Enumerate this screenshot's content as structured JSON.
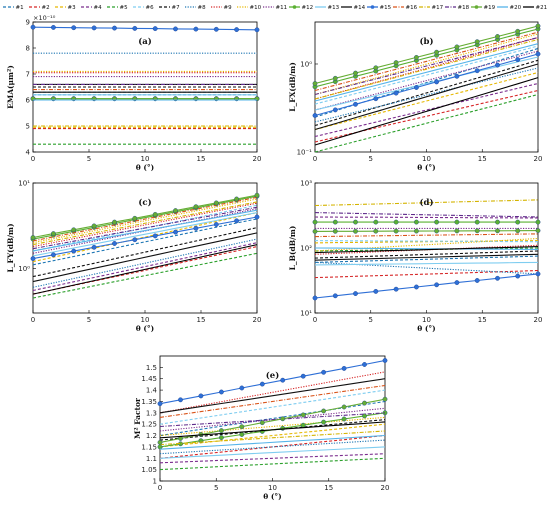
{
  "legend": [
    "#1",
    "#2",
    "#3",
    "#4",
    "#5",
    "#6",
    "#7",
    "#8",
    "#9",
    "#10",
    "#11",
    "#12",
    "#13",
    "#14",
    "#15",
    "#16",
    "#17",
    "#18",
    "#19",
    "#20",
    "#21"
  ],
  "series_colors": [
    "#1f77b4",
    "#d62728",
    "#e6b800",
    "#7b2d8e",
    "#2ca02c",
    "#7fcdf0",
    "#111111",
    "#1f77b4",
    "#d62728",
    "#e6b800",
    "#7b2d8e",
    "#5ab032",
    "#7fcdf0",
    "#111111",
    "#2e6fd6",
    "#d95319",
    "#d4b400",
    "#5e2a8a",
    "#66ad34",
    "#56b4e9",
    "#000000"
  ],
  "chart_data": [
    {
      "panel": "(a)",
      "type": "line",
      "scale": "linear",
      "title": "(a)",
      "xlabel": "θ (°)",
      "ylabel": "EMA(μm²)",
      "multiplier": "×10⁻¹⁰",
      "xlim": [
        0,
        20
      ],
      "ylim": [
        4,
        9
      ],
      "xticks": [
        "0",
        "5",
        "10",
        "15",
        "20"
      ],
      "yticks": [
        "4",
        "5",
        "6",
        "7",
        "8",
        "9"
      ],
      "x": [
        0,
        20
      ],
      "series": [
        {
          "values": [
            6.2,
            6.2
          ]
        },
        {
          "values": [
            4.9,
            4.9
          ]
        },
        {
          "values": [
            4.95,
            4.95
          ]
        },
        {
          "values": [
            6.5,
            6.5
          ]
        },
        {
          "values": [
            4.3,
            4.3
          ]
        },
        {
          "values": [
            6.3,
            6.3
          ]
        },
        {
          "values": [
            6.5,
            6.5
          ]
        },
        {
          "values": [
            7.8,
            7.8
          ]
        },
        {
          "values": [
            7.05,
            7.05
          ]
        },
        {
          "values": [
            7.1,
            7.1
          ]
        },
        {
          "values": [
            6.9,
            6.9
          ]
        },
        {
          "values": [
            6.05,
            6.05
          ]
        },
        {
          "values": [
            6.2,
            6.2
          ]
        },
        {
          "values": [
            6.6,
            6.6
          ]
        },
        {
          "values": [
            8.8,
            8.7
          ]
        },
        {
          "values": [
            6.4,
            6.4
          ]
        },
        {
          "values": [
            5.0,
            5.0
          ]
        },
        {
          "values": [
            6.6,
            6.6
          ]
        },
        {
          "values": [
            6.05,
            6.05
          ]
        },
        {
          "values": [
            6.0,
            6.0
          ]
        },
        {
          "values": [
            6.3,
            6.3
          ]
        }
      ]
    },
    {
      "panel": "(b)",
      "type": "line",
      "scale": "log",
      "title": "(b)",
      "xlabel": "θ (°)",
      "ylabel": "L_FX(dB/m)",
      "xlim": [
        0,
        20
      ],
      "ylim": [
        0.1,
        3.0
      ],
      "xticks": [
        "0",
        "5",
        "10",
        "15",
        "20"
      ],
      "yticks": [
        "10⁻¹",
        "10⁰"
      ],
      "x": [
        0,
        20
      ],
      "series": [
        {
          "values": [
            0.25,
            1.5
          ]
        },
        {
          "values": [
            0.13,
            0.5
          ]
        },
        {
          "values": [
            0.18,
            0.8
          ]
        },
        {
          "values": [
            0.15,
            0.6
          ]
        },
        {
          "values": [
            0.1,
            0.45
          ]
        },
        {
          "values": [
            0.35,
            1.6
          ]
        },
        {
          "values": [
            0.2,
            1.1
          ]
        },
        {
          "values": [
            0.22,
            0.9
          ]
        },
        {
          "values": [
            0.4,
            2.0
          ]
        },
        {
          "values": [
            0.45,
            2.2
          ]
        },
        {
          "values": [
            0.3,
            1.4
          ]
        },
        {
          "values": [
            0.55,
            2.5
          ]
        },
        {
          "values": [
            0.3,
            1.2
          ]
        },
        {
          "values": [
            0.18,
            1.0
          ]
        },
        {
          "values": [
            0.26,
            1.3
          ]
        },
        {
          "values": [
            0.5,
            2.3
          ]
        },
        {
          "values": [
            0.4,
            1.9
          ]
        },
        {
          "values": [
            0.45,
            2.0
          ]
        },
        {
          "values": [
            0.6,
            2.7
          ]
        },
        {
          "values": [
            0.38,
            1.7
          ]
        },
        {
          "values": [
            0.12,
            0.7
          ]
        }
      ]
    },
    {
      "panel": "(c)",
      "type": "line",
      "scale": "log",
      "title": "(c)",
      "xlabel": "θ (°)",
      "ylabel": "L_FY(dB/m)",
      "xlim": [
        0,
        20
      ],
      "ylim": [
        0.3,
        10
      ],
      "xticks": [
        "0",
        "5",
        "10",
        "15",
        "20"
      ],
      "yticks": [
        "10⁰",
        "10¹"
      ],
      "x": [
        0,
        20
      ],
      "series": [
        {
          "values": [
            1.1,
            3.8
          ]
        },
        {
          "values": [
            0.5,
            1.8
          ]
        },
        {
          "values": [
            1.2,
            4.5
          ]
        },
        {
          "values": [
            0.55,
            2.0
          ]
        },
        {
          "values": [
            0.45,
            1.5
          ]
        },
        {
          "values": [
            1.6,
            5.5
          ]
        },
        {
          "values": [
            0.8,
            3.0
          ]
        },
        {
          "values": [
            0.6,
            2.2
          ]
        },
        {
          "values": [
            1.8,
            5.8
          ]
        },
        {
          "values": [
            2.0,
            6.5
          ]
        },
        {
          "values": [
            1.5,
            5.0
          ]
        },
        {
          "values": [
            2.2,
            7.0
          ]
        },
        {
          "values": [
            1.4,
            4.5
          ]
        },
        {
          "values": [
            0.7,
            2.6
          ]
        },
        {
          "values": [
            1.3,
            4.0
          ]
        },
        {
          "values": [
            2.1,
            6.8
          ]
        },
        {
          "values": [
            1.9,
            6.0
          ]
        },
        {
          "values": [
            1.7,
            5.2
          ]
        },
        {
          "values": [
            2.3,
            7.2
          ]
        },
        {
          "values": [
            1.6,
            4.8
          ]
        },
        {
          "values": [
            0.5,
            1.9
          ]
        }
      ]
    },
    {
      "panel": "(d)",
      "type": "line",
      "scale": "log",
      "title": "(d)",
      "xlabel": "θ (°)",
      "ylabel": "L_B(dB/m)",
      "xlim": [
        0,
        20
      ],
      "ylim": [
        10,
        1000
      ],
      "xticks": [
        "0",
        "5",
        "10",
        "15",
        "20"
      ],
      "yticks": [
        "10¹",
        "10²",
        "10³"
      ],
      "x": [
        0,
        20
      ],
      "series": [
        {
          "values": [
            60,
            75
          ]
        },
        {
          "values": [
            35,
            45
          ]
        },
        {
          "values": [
            120,
            130
          ]
        },
        {
          "values": [
            300,
            290
          ]
        },
        {
          "values": [
            90,
            100
          ]
        },
        {
          "values": [
            130,
            125
          ]
        },
        {
          "values": [
            70,
            90
          ]
        },
        {
          "values": [
            60,
            40
          ]
        },
        {
          "values": [
            80,
            110
          ]
        },
        {
          "values": [
            90,
            140
          ]
        },
        {
          "values": [
            200,
            200
          ]
        },
        {
          "values": [
            250,
            250
          ]
        },
        {
          "values": [
            55,
            60
          ]
        },
        {
          "values": [
            65,
            80
          ]
        },
        {
          "values": [
            17,
            40
          ]
        },
        {
          "values": [
            150,
            165
          ]
        },
        {
          "values": [
            450,
            550
          ]
        },
        {
          "values": [
            350,
            300
          ]
        },
        {
          "values": [
            180,
            185
          ]
        },
        {
          "values": [
            100,
            95
          ]
        },
        {
          "values": [
            85,
            105
          ]
        }
      ]
    },
    {
      "panel": "(e)",
      "type": "line",
      "scale": "linear",
      "title": "(e)",
      "xlabel": "θ (°)",
      "ylabel": "M² Factor",
      "xlim": [
        0,
        20
      ],
      "ylim": [
        1,
        1.55
      ],
      "xticks": [
        "0",
        "5",
        "10",
        "15",
        "20"
      ],
      "yticks": [
        "1",
        "1.05",
        "1.1",
        "1.15",
        "1.2",
        "1.25",
        "1.3",
        "1.35",
        "1.4",
        "1.45",
        "1.5"
      ],
      "x": [
        0,
        20
      ],
      "series": [
        {
          "values": [
            1.2,
            1.35
          ]
        },
        {
          "values": [
            1.1,
            1.2
          ]
        },
        {
          "values": [
            1.15,
            1.25
          ]
        },
        {
          "values": [
            1.08,
            1.12
          ]
        },
        {
          "values": [
            1.05,
            1.1
          ]
        },
        {
          "values": [
            1.25,
            1.4
          ]
        },
        {
          "values": [
            1.18,
            1.27
          ]
        },
        {
          "values": [
            1.12,
            1.18
          ]
        },
        {
          "values": [
            1.3,
            1.48
          ]
        },
        {
          "values": [
            1.2,
            1.28
          ]
        },
        {
          "values": [
            1.22,
            1.32
          ]
        },
        {
          "values": [
            1.15,
            1.3
          ]
        },
        {
          "values": [
            1.1,
            1.15
          ]
        },
        {
          "values": [
            1.3,
            1.45
          ]
        },
        {
          "values": [
            1.34,
            1.53
          ]
        },
        {
          "values": [
            1.28,
            1.42
          ]
        },
        {
          "values": [
            1.16,
            1.22
          ]
        },
        {
          "values": [
            1.24,
            1.3
          ]
        },
        {
          "values": [
            1.17,
            1.36
          ]
        },
        {
          "values": [
            1.14,
            1.2
          ]
        },
        {
          "values": [
            1.19,
            1.26
          ]
        }
      ]
    }
  ]
}
